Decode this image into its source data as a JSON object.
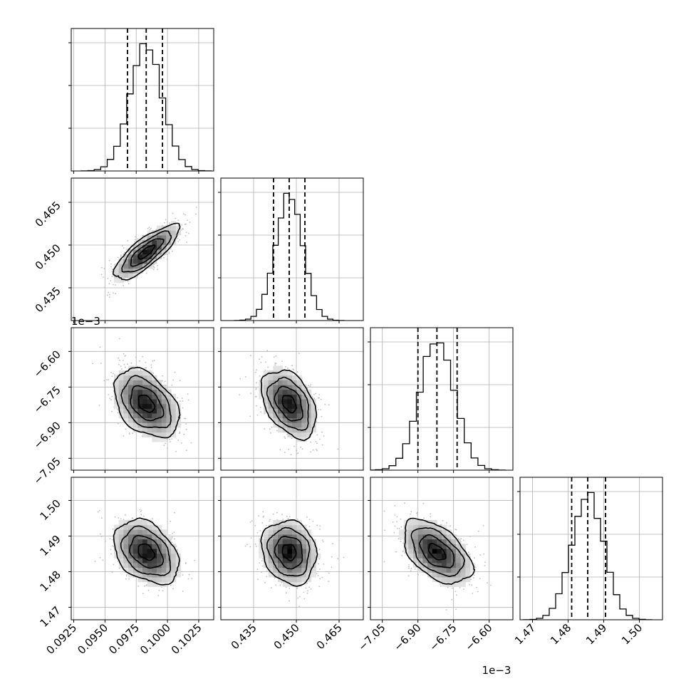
{
  "chart_data": {
    "type": "corner",
    "parameters": [
      {
        "scale_label": "",
        "ticks": [
          0.0925,
          0.095,
          0.0975,
          0.1,
          0.1025
        ],
        "tick_labels": [
          "0.0925",
          "0.0950",
          "0.0975",
          "0.1000",
          "0.1025"
        ],
        "range": [
          0.0923,
          0.1037
        ],
        "mean": 0.0983,
        "sd": 0.0013,
        "quantiles": [
          0.0968,
          0.0983,
          0.0996
        ]
      },
      {
        "scale_label": "",
        "ticks": [
          0.435,
          0.45,
          0.465
        ],
        "tick_labels": [
          "0.435",
          "0.450",
          "0.465"
        ],
        "range": [
          0.4235,
          0.4735
        ],
        "mean": 0.4475,
        "sd": 0.0048,
        "quantiles": [
          0.442,
          0.4475,
          0.453
        ]
      },
      {
        "scale_label": "1e−3",
        "ticks": [
          -7.05,
          -6.9,
          -6.75,
          -6.6
        ],
        "tick_labels": [
          "−7.05",
          "−6.90",
          "−6.75",
          "−6.60"
        ],
        "range": [
          -7.1,
          -6.5
        ],
        "mean": -6.82,
        "sd": 0.072,
        "quantiles": [
          -6.9,
          -6.82,
          -6.735
        ]
      },
      {
        "scale_label": "1e−3",
        "ticks": [
          1.47,
          1.48,
          1.49,
          1.5
        ],
        "tick_labels": [
          "1.47",
          "1.48",
          "1.49",
          "1.50"
        ],
        "range": [
          1.4665,
          1.5065
        ],
        "mean": 1.4855,
        "sd": 0.0045,
        "quantiles": [
          1.481,
          1.4855,
          1.4905
        ]
      }
    ],
    "correlations": [
      {
        "pair": [
          0,
          1
        ],
        "rho": 0.8
      },
      {
        "pair": [
          0,
          2
        ],
        "rho": -0.4
      },
      {
        "pair": [
          1,
          2
        ],
        "rho": -0.4
      },
      {
        "pair": [
          0,
          3
        ],
        "rho": -0.35
      },
      {
        "pair": [
          1,
          3
        ],
        "rho": -0.15
      },
      {
        "pair": [
          2,
          3
        ],
        "rho": -0.5
      }
    ],
    "histogram_bins": 20,
    "quantile_levels": [
      0.16,
      0.5,
      0.84
    ],
    "contour_levels_sigma": [
      0.5,
      1,
      1.5,
      2
    ],
    "grid": true,
    "colors": {
      "line": "#000000",
      "grid": "#b0b0b0",
      "points": "#bdbdbd"
    }
  }
}
